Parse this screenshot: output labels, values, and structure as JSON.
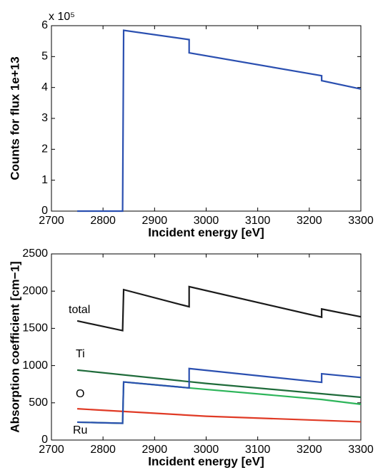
{
  "chart_data": [
    {
      "type": "line",
      "xlabel": "Incident energy [eV]",
      "ylabel": "Counts for flux  1e+13",
      "y_multiplier": "x 10⁵",
      "xlim": [
        2700,
        3300
      ],
      "xticks": [
        2700,
        2800,
        2900,
        3000,
        3100,
        3200,
        3300
      ],
      "ylim": [
        0,
        6
      ],
      "yticks": [
        0,
        1,
        2,
        3,
        4,
        5,
        6
      ],
      "series": [
        {
          "color": "#2a4fb0",
          "x": [
            2750,
            2838,
            2840,
            2967,
            2967,
            3224,
            3224,
            3300
          ],
          "values": [
            0,
            0,
            5.85,
            5.55,
            5.12,
            4.38,
            4.22,
            3.95
          ]
        }
      ]
    },
    {
      "type": "line",
      "xlabel": "Incident energy [eV]",
      "ylabel": "Absorption coefficient [cm−1]",
      "xlim": [
        2700,
        3300
      ],
      "xticks": [
        2700,
        2800,
        2900,
        3000,
        3100,
        3200,
        3300
      ],
      "ylim": [
        0,
        2500
      ],
      "yticks": [
        0,
        500,
        1000,
        1500,
        2000,
        2500
      ],
      "series": [
        {
          "name": "total",
          "color": "#1a1a1a",
          "x": [
            2750,
            2838,
            2840,
            2967,
            2967,
            3224,
            3224,
            3300
          ],
          "values": [
            1600,
            1470,
            2020,
            1790,
            2060,
            1650,
            1760,
            1655
          ]
        },
        {
          "name": "Ti",
          "color": "#1f6b3a",
          "x": [
            2750,
            3000,
            3300
          ],
          "values": [
            940,
            760,
            575
          ]
        },
        {
          "name": "O",
          "color": "#e03a25",
          "x": [
            2750,
            3000,
            3300
          ],
          "values": [
            420,
            320,
            245
          ]
        },
        {
          "color": "#2db55a",
          "x": [
            2750,
            2838,
            2840,
            2967,
            3224,
            3300
          ],
          "values": [
            240,
            225,
            780,
            700,
            545,
            480
          ]
        },
        {
          "name": "Ru",
          "color": "#2a4fb0",
          "x": [
            2750,
            2838,
            2840,
            2967,
            2967,
            3224,
            3224,
            3300
          ],
          "values": [
            240,
            225,
            780,
            700,
            960,
            775,
            890,
            840
          ]
        }
      ]
    }
  ]
}
